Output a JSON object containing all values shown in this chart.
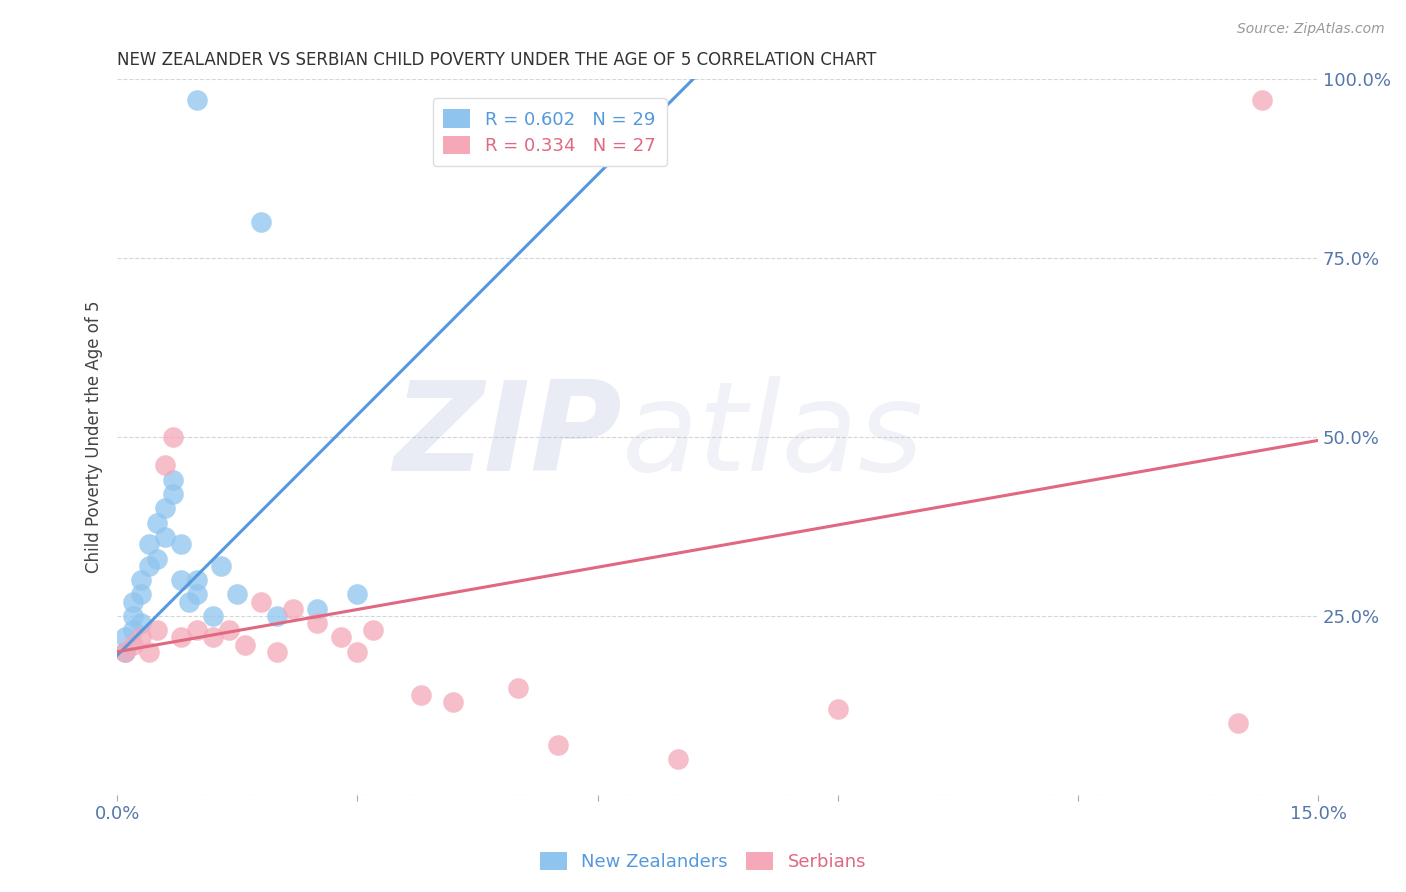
{
  "title": "NEW ZEALANDER VS SERBIAN CHILD POVERTY UNDER THE AGE OF 5 CORRELATION CHART",
  "source": "Source: ZipAtlas.com",
  "ylabel": "Child Poverty Under the Age of 5",
  "xlim": [
    0.0,
    0.15
  ],
  "ylim": [
    0.0,
    1.0
  ],
  "nz_color": "#8EC4EE",
  "srb_color": "#F4A8B8",
  "nz_line_color": "#5599DD",
  "srb_line_color": "#E06880",
  "bg_color": "#FFFFFF",
  "grid_color": "#CCCCCC",
  "axis_color": "#5577AA",
  "watermark_zip": "ZIP",
  "watermark_atlas": "atlas",
  "nz_x": [
    0.001,
    0.001,
    0.002,
    0.002,
    0.002,
    0.003,
    0.003,
    0.003,
    0.004,
    0.004,
    0.005,
    0.005,
    0.006,
    0.006,
    0.007,
    0.007,
    0.008,
    0.008,
    0.009,
    0.01,
    0.01,
    0.012,
    0.013,
    0.015,
    0.02,
    0.025,
    0.03,
    0.01,
    0.018
  ],
  "nz_y": [
    0.2,
    0.22,
    0.23,
    0.25,
    0.27,
    0.24,
    0.28,
    0.3,
    0.32,
    0.35,
    0.33,
    0.38,
    0.36,
    0.4,
    0.42,
    0.44,
    0.3,
    0.35,
    0.27,
    0.3,
    0.28,
    0.25,
    0.32,
    0.28,
    0.25,
    0.26,
    0.28,
    0.97,
    0.8
  ],
  "srb_x": [
    0.001,
    0.002,
    0.003,
    0.004,
    0.005,
    0.006,
    0.007,
    0.008,
    0.01,
    0.012,
    0.014,
    0.016,
    0.018,
    0.02,
    0.022,
    0.025,
    0.028,
    0.03,
    0.032,
    0.038,
    0.042,
    0.05,
    0.055,
    0.07,
    0.09,
    0.14,
    0.143
  ],
  "srb_y": [
    0.2,
    0.21,
    0.22,
    0.2,
    0.23,
    0.46,
    0.5,
    0.22,
    0.23,
    0.22,
    0.23,
    0.21,
    0.27,
    0.2,
    0.26,
    0.24,
    0.22,
    0.2,
    0.23,
    0.14,
    0.13,
    0.15,
    0.07,
    0.05,
    0.12,
    0.1,
    0.97
  ],
  "nz_line_x": [
    0.0,
    0.072
  ],
  "nz_line_y": [
    0.195,
    1.0
  ],
  "srb_line_x": [
    0.0,
    0.15
  ],
  "srb_line_y": [
    0.2,
    0.495
  ]
}
